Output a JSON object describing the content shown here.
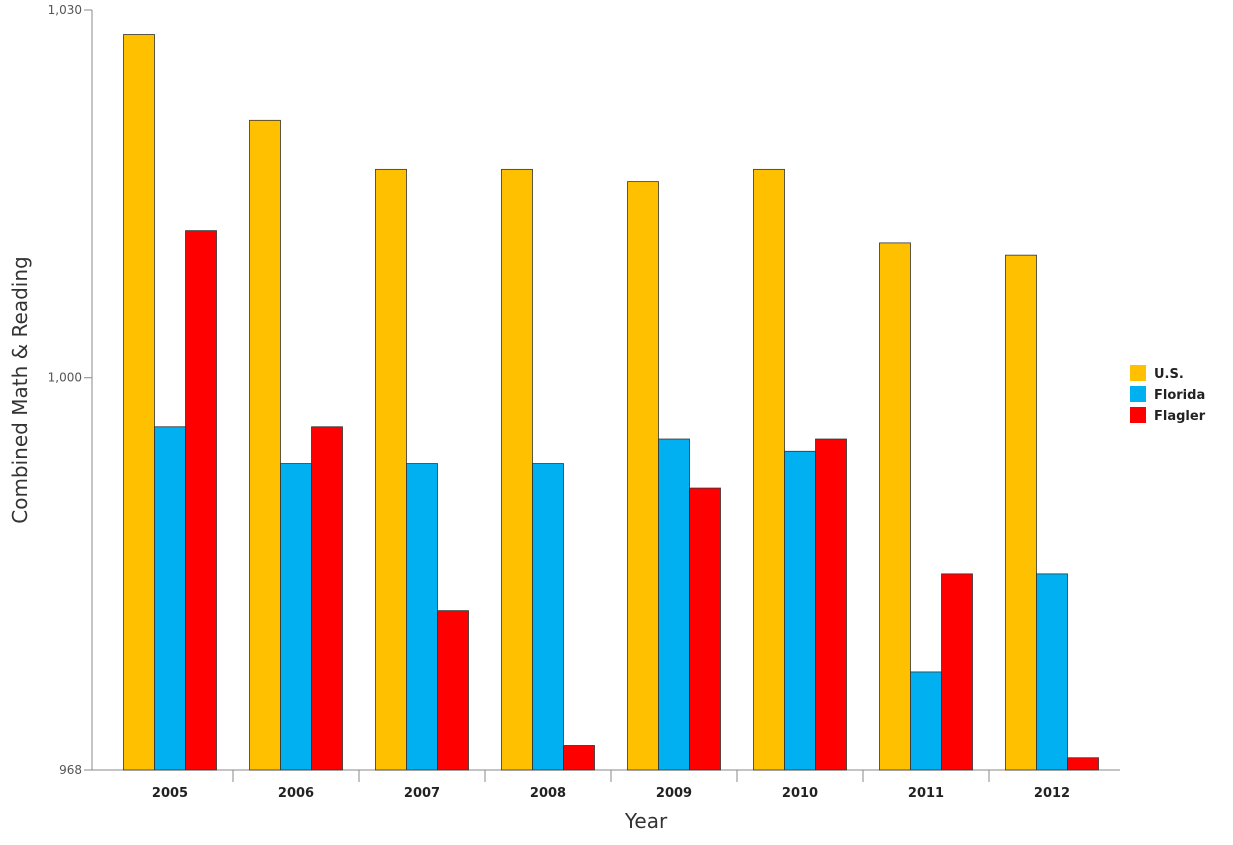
{
  "chart_data": {
    "type": "bar",
    "categories": [
      "2005",
      "2006",
      "2007",
      "2008",
      "2009",
      "2010",
      "2011",
      "2012"
    ],
    "series": [
      {
        "name": "U.S.",
        "color": "#FFC000",
        "values": [
          1028,
          1021,
          1017,
          1017,
          1016,
          1017,
          1011,
          1010
        ]
      },
      {
        "name": "Florida",
        "color": "#00B0F0",
        "values": [
          996,
          993,
          993,
          993,
          995,
          994,
          976,
          984
        ]
      },
      {
        "name": "Flagler",
        "color": "#FF0000",
        "values": [
          1012,
          996,
          981,
          970,
          991,
          995,
          984,
          969
        ]
      }
    ],
    "xlabel": "Year",
    "ylabel": "Combined Math & Reading",
    "ylim": [
      968,
      1030
    ],
    "yticks": [
      {
        "value": 968,
        "label": "968"
      },
      {
        "value": 1000,
        "label": "1,000"
      },
      {
        "value": 1030,
        "label": "1,030"
      }
    ],
    "grid": false,
    "legend_position": "right"
  }
}
